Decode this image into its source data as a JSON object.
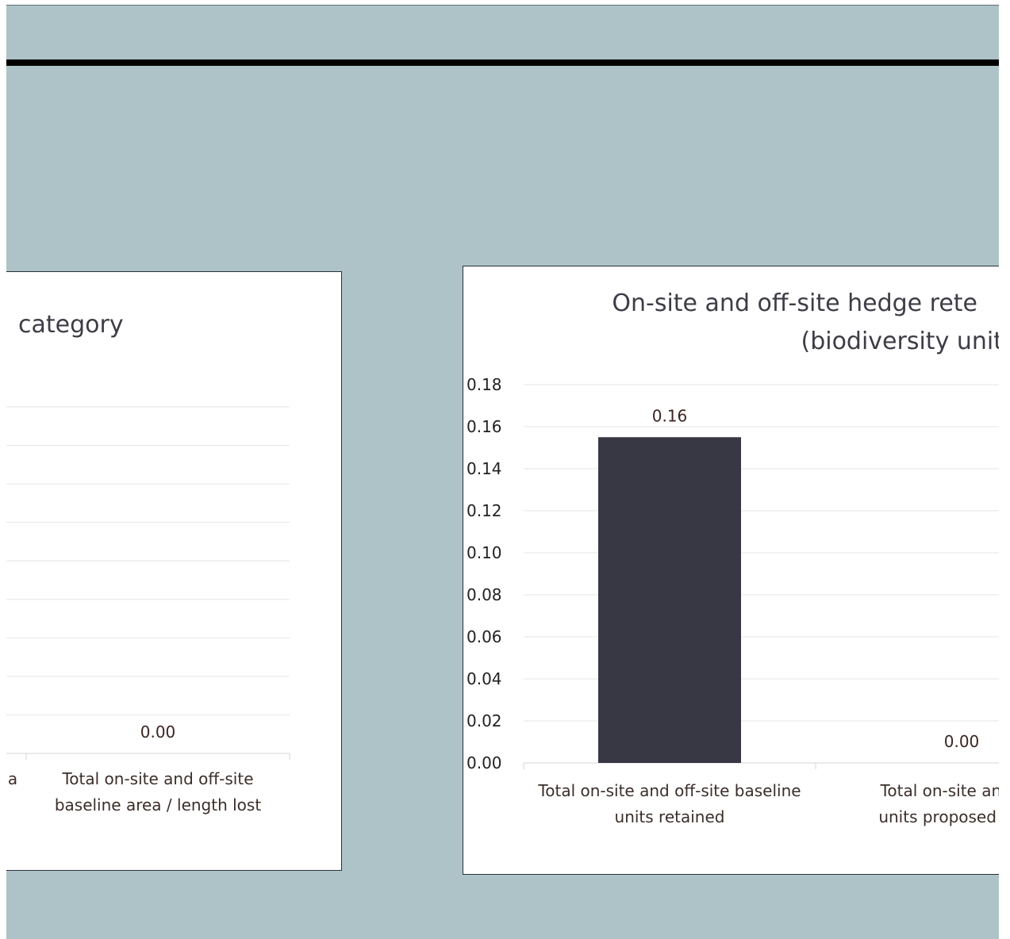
{
  "theme": {
    "background": "#adc3c8",
    "bar_color": "#383845",
    "grid_color": "#e6e6e6"
  },
  "chart_data": [
    {
      "type": "bar",
      "title_fragment": "category",
      "categories": [
        "a",
        "Total on-site and off-site baseline area / length lost"
      ],
      "category_lines": [
        [
          "a"
        ],
        [
          "Total on-site and off-site",
          "baseline area / length lost"
        ]
      ],
      "data_labels": [
        "0.00"
      ],
      "values": [
        null,
        0.0
      ],
      "grid": true
    },
    {
      "type": "bar",
      "title": "On-site and off-site hedge rete",
      "subtitle": "(biodiversity unit",
      "categories": [
        "Total on-site and off-site baseline units retained",
        "Total on-site and off- units proposed for er"
      ],
      "category_lines": [
        [
          "Total on-site and off-site baseline",
          "units retained"
        ],
        [
          "Total on-site and off-",
          "units proposed for er"
        ]
      ],
      "values": [
        0.155,
        0.0
      ],
      "data_labels": [
        "0.16",
        "0.00"
      ],
      "ylim": [
        0,
        0.18
      ],
      "yticks": [
        "0.00",
        "0.02",
        "0.04",
        "0.06",
        "0.08",
        "0.10",
        "0.12",
        "0.14",
        "0.16",
        "0.18"
      ],
      "grid": true
    }
  ]
}
